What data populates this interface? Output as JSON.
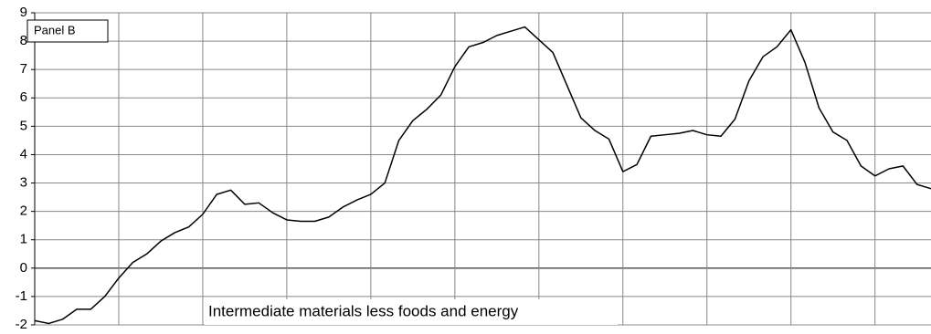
{
  "chart_data": {
    "type": "line",
    "label": "Panel B",
    "annotation": "Intermediate materials less foods and energy",
    "categories": [
      null,
      null,
      null,
      null,
      null,
      null,
      null,
      null,
      null,
      null,
      null,
      null,
      null,
      null,
      null,
      null,
      null,
      null,
      null,
      null,
      null,
      null,
      null,
      null,
      null,
      null,
      null,
      null,
      null,
      null,
      null,
      null,
      null,
      null,
      null,
      null,
      null,
      null,
      null,
      null,
      null,
      null,
      null,
      null,
      null,
      null,
      null,
      null,
      null,
      null,
      null,
      null,
      null,
      null,
      null,
      null,
      null,
      null,
      null,
      null,
      null,
      null,
      null,
      null,
      null
    ],
    "series": [
      {
        "name": null,
        "color": "#000000",
        "values": [
          -1.85,
          -1.95,
          -1.8,
          -1.45,
          -1.45,
          -1.0,
          -0.35,
          0.2,
          0.5,
          0.95,
          1.25,
          1.45,
          1.9,
          2.6,
          2.75,
          2.25,
          2.3,
          1.95,
          1.7,
          1.65,
          1.65,
          1.8,
          2.15,
          2.4,
          2.6,
          3.0,
          4.5,
          5.2,
          5.6,
          6.1,
          7.1,
          7.8,
          7.95,
          8.2,
          8.35,
          8.5,
          8.05,
          7.6,
          6.45,
          5.3,
          4.85,
          4.55,
          3.4,
          3.65,
          4.65,
          4.7,
          4.75,
          4.85,
          4.7,
          4.65,
          5.25,
          6.6,
          7.45,
          7.8,
          8.4,
          7.25,
          5.65,
          4.8,
          4.5,
          3.6,
          3.25,
          3.5,
          3.6,
          2.95,
          2.8
        ]
      }
    ],
    "ylim": [
      -2,
      9
    ],
    "yticks": [
      -2,
      -1,
      0,
      1,
      2,
      3,
      4,
      5,
      6,
      7,
      8,
      9
    ],
    "grid": true
  }
}
